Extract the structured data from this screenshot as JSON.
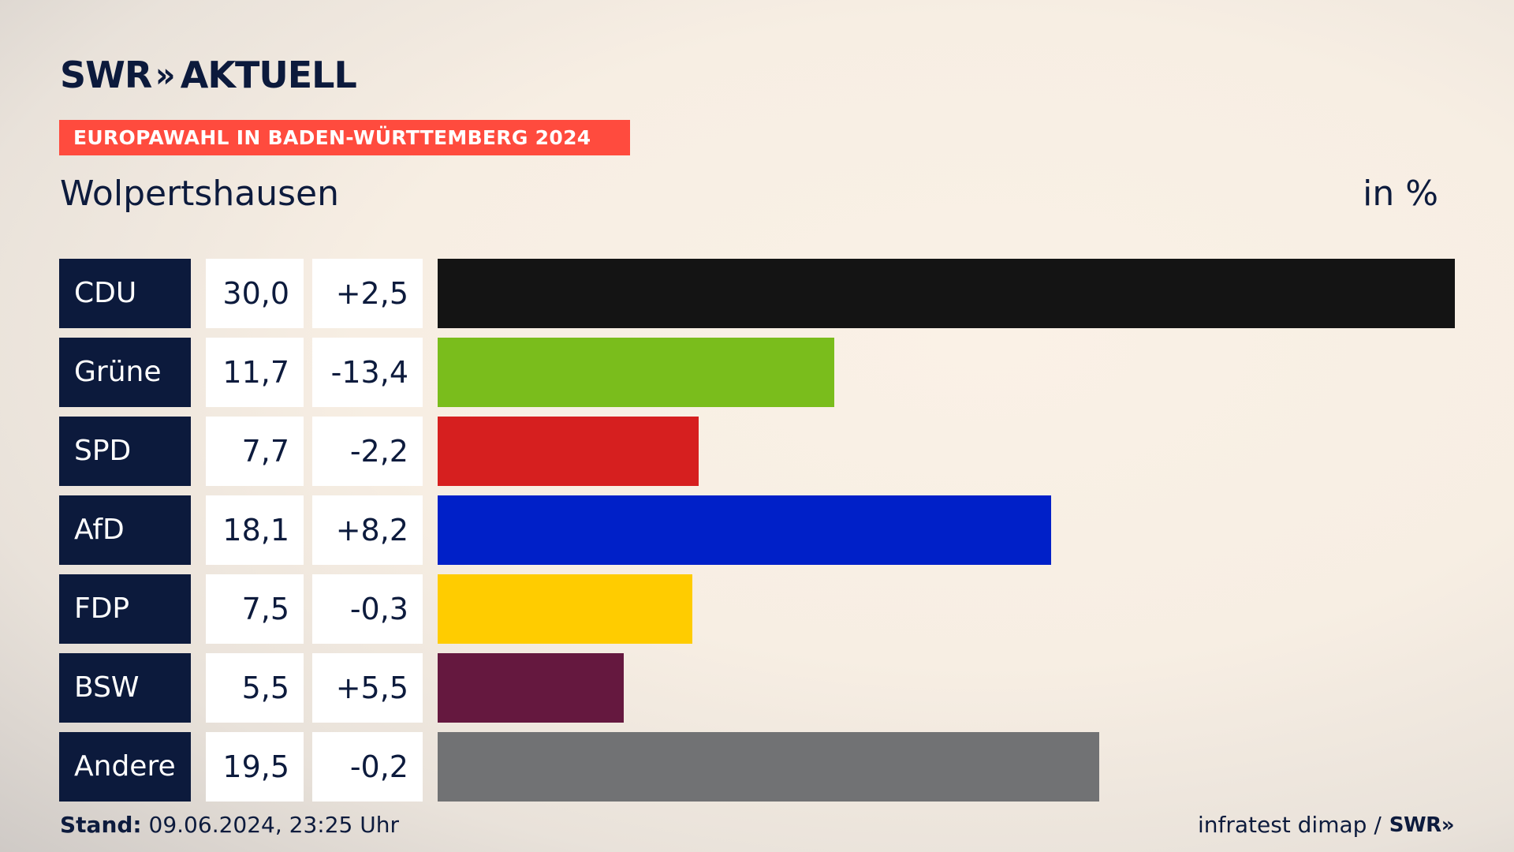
{
  "brand": {
    "logo_text": "SWR",
    "logo_chevrons": "»",
    "logo_suffix": "AKTUELL"
  },
  "banner": "EUROPAWAHL IN BADEN-WÜRTTEMBERG 2024",
  "location": "Wolpertshausen",
  "unit": "in %",
  "chart_data": {
    "type": "bar",
    "orientation": "horizontal",
    "title": "EUROPAWAHL IN BADEN-WÜRTTEMBERG 2024",
    "subtitle": "Wolpertshausen",
    "unit": "in %",
    "categories": [
      "CDU",
      "Grüne",
      "SPD",
      "AfD",
      "FDP",
      "BSW",
      "Andere"
    ],
    "values": [
      30.0,
      11.7,
      7.7,
      18.1,
      7.5,
      5.5,
      19.5
    ],
    "value_labels": [
      "30,0",
      "11,7",
      "7,7",
      "18,1",
      "7,5",
      "5,5",
      "19,5"
    ],
    "changes": [
      "+2,5",
      "-13,4",
      "-2,2",
      "+8,2",
      "-0,3",
      "+5,5",
      "-0,2"
    ],
    "colors": [
      "#141414",
      "#7abd1c",
      "#d61f1f",
      "#0020c8",
      "#ffcc00",
      "#65183f",
      "#717274"
    ],
    "xlim": [
      0,
      30.0
    ]
  },
  "footer": {
    "stand_label": "Stand:",
    "stand_value": "09.06.2024, 23:25 Uhr",
    "source": "infratest dimap /",
    "source_logo": "SWR»"
  }
}
